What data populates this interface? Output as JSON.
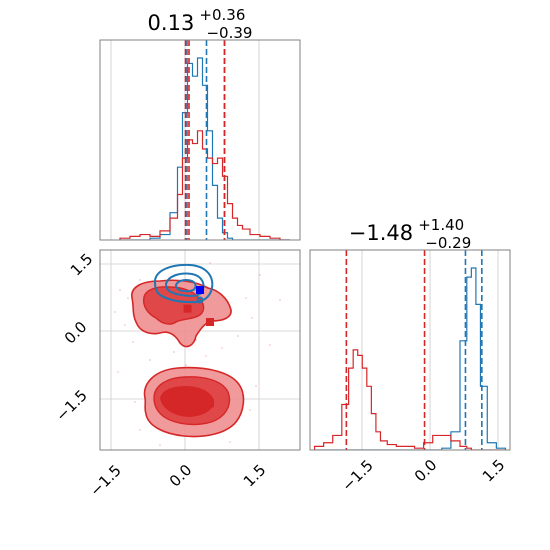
{
  "chart_data": [
    {
      "type": "histogram",
      "panel": "top-left",
      "title": {
        "value": "0.13",
        "plus": "+0.36",
        "minus": "−0.39"
      },
      "xlim": [
        -2.0,
        2.0
      ],
      "bin_centers": [
        -1.5,
        -1.3,
        -1.1,
        -0.9,
        -0.7,
        -0.5,
        -0.4,
        -0.3,
        -0.2,
        -0.1,
        0.0,
        0.1,
        0.2,
        0.3,
        0.4,
        0.5,
        0.6,
        0.7,
        0.8,
        0.9,
        1.1,
        1.3,
        1.5,
        1.7
      ],
      "series": [
        {
          "color": "#1f77b4",
          "values": [
            0,
            0,
            0,
            0.01,
            0.03,
            0.15,
            0.4,
            0.7,
            0.97,
            0.9,
            1.0,
            0.85,
            0.6,
            0.3,
            0.12,
            0.04,
            0.01,
            0,
            0,
            0,
            0,
            0,
            0,
            0
          ]
        },
        {
          "color": "#d62728",
          "values": [
            0.01,
            0.02,
            0.03,
            0.02,
            0.05,
            0.12,
            0.25,
            0.45,
            0.55,
            0.53,
            0.6,
            0.5,
            0.45,
            0.42,
            0.45,
            0.35,
            0.2,
            0.12,
            0.08,
            0.06,
            0.03,
            0.02,
            0.01,
            0
          ]
        }
      ],
      "quantile_lines": [
        {
          "color": "#1f77b4",
          "x": [
            -0.26,
            0.13,
            0.49
          ]
        },
        {
          "color": "#d62728",
          "x": [
            -0.29,
            -0.22,
            0.49
          ]
        }
      ]
    },
    {
      "type": "contour",
      "panel": "bottom-left",
      "xlim": [
        -2.0,
        2.0
      ],
      "ylim": [
        -2.6,
        1.9
      ],
      "x_ticks": [
        "−1.5",
        "0.0",
        "1.5"
      ],
      "y_ticks": [
        "−1.5",
        "0.0",
        "1.5"
      ],
      "markers": [
        {
          "color": "#0000ff",
          "x": 0.0,
          "y": 1.0
        },
        {
          "color": "#d62728",
          "x": -0.25,
          "y": 0.58
        },
        {
          "color": "#d62728",
          "x": 0.2,
          "y": 0.28
        },
        {
          "color": "#d62728",
          "x": 0.2,
          "y": -1.55
        }
      ]
    },
    {
      "type": "histogram",
      "panel": "bottom-right",
      "title": {
        "value": "−1.48",
        "plus": "+1.40",
        "minus": "−0.29"
      },
      "xlim": [
        -2.6,
        1.8
      ],
      "x_ticks": [
        "−1.5",
        "0.0",
        "1.5"
      ],
      "bin_centers": [
        -2.4,
        -2.2,
        -2.0,
        -1.8,
        -1.7,
        -1.6,
        -1.5,
        -1.4,
        -1.3,
        -1.2,
        -1.1,
        -1.0,
        -0.8,
        -0.6,
        -0.4,
        -0.2,
        0.0,
        0.2,
        0.4,
        0.6,
        0.8,
        0.9,
        1.0,
        1.1,
        1.2,
        1.4,
        1.6
      ],
      "series": [
        {
          "color": "#1f77b4",
          "values": [
            0,
            0,
            0,
            0,
            0,
            0,
            0,
            0,
            0,
            0,
            0,
            0,
            0,
            0,
            0,
            0,
            0,
            0,
            0.01,
            0.1,
            0.6,
            0.95,
            1.0,
            0.8,
            0.35,
            0.04,
            0.01
          ]
        },
        {
          "color": "#d62728",
          "values": [
            0.02,
            0.04,
            0.08,
            0.25,
            0.45,
            0.55,
            0.52,
            0.45,
            0.35,
            0.2,
            0.1,
            0.05,
            0.03,
            0.02,
            0.02,
            0.01,
            0.04,
            0.08,
            0.08,
            0.05,
            0.02,
            0.01,
            0,
            0,
            0,
            0,
            0
          ]
        }
      ],
      "quantile_lines": [
        {
          "color": "#1f77b4",
          "x": [
            0.82,
            1.18
          ]
        },
        {
          "color": "#d62728",
          "x": [
            -1.8,
            -0.08
          ]
        }
      ]
    }
  ]
}
